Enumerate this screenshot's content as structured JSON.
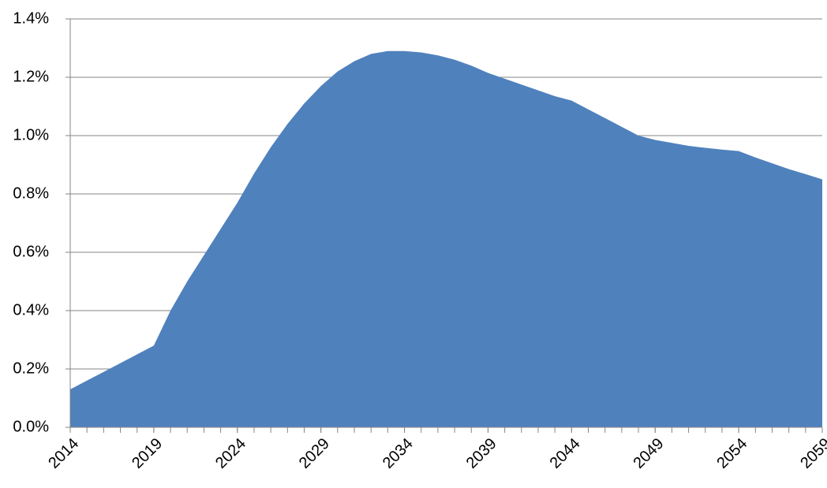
{
  "chart_data": {
    "type": "area",
    "color": "#4f81bd",
    "grid": true,
    "x": [
      2014,
      2015,
      2016,
      2017,
      2018,
      2019,
      2020,
      2021,
      2022,
      2023,
      2024,
      2025,
      2026,
      2027,
      2028,
      2029,
      2030,
      2031,
      2032,
      2033,
      2034,
      2035,
      2036,
      2037,
      2038,
      2039,
      2040,
      2041,
      2042,
      2043,
      2044,
      2045,
      2046,
      2047,
      2048,
      2049,
      2050,
      2051,
      2052,
      2053,
      2054,
      2055,
      2056,
      2057,
      2058,
      2059
    ],
    "values": [
      0.13,
      0.16,
      0.19,
      0.22,
      0.25,
      0.28,
      0.4,
      0.5,
      0.59,
      0.68,
      0.77,
      0.87,
      0.96,
      1.04,
      1.11,
      1.17,
      1.22,
      1.255,
      1.28,
      1.29,
      1.29,
      1.285,
      1.275,
      1.26,
      1.24,
      1.215,
      1.195,
      1.175,
      1.155,
      1.135,
      1.12,
      1.09,
      1.06,
      1.03,
      1.0,
      0.985,
      0.975,
      0.965,
      0.958,
      0.952,
      0.947,
      0.925,
      0.905,
      0.885,
      0.868,
      0.85
    ],
    "xlim": [
      2014,
      2059
    ],
    "xticks": [
      2014,
      2019,
      2024,
      2029,
      2034,
      2039,
      2044,
      2049,
      2054,
      2059
    ],
    "ylim": [
      0,
      1.4
    ],
    "yticks": [
      {
        "value": 0,
        "label": "0.0%"
      },
      {
        "value": 0.2,
        "label": "0.2%"
      },
      {
        "value": 0.4,
        "label": "0.4%"
      },
      {
        "value": 0.6,
        "label": "0.6%"
      },
      {
        "value": 0.8,
        "label": "0.8%"
      },
      {
        "value": 1.0,
        "label": "1.0%"
      },
      {
        "value": 1.2,
        "label": "1.2%"
      },
      {
        "value": 1.4,
        "label": "1.4%"
      }
    ]
  }
}
